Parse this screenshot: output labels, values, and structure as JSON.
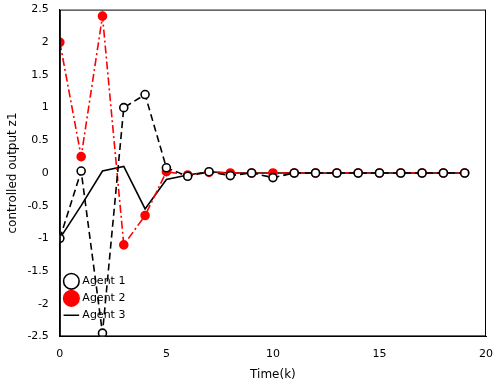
{
  "chart_data": {
    "type": "line",
    "x_label": "Time(k)",
    "y_label": "controlled output z1",
    "x": [
      0,
      1,
      2,
      3,
      4,
      5,
      6,
      7,
      8,
      9,
      10,
      11,
      12,
      13,
      14,
      15,
      16,
      17,
      18,
      19
    ],
    "series": [
      {
        "name": "Agent 1",
        "color": "#000000",
        "marker": "open_circle",
        "line_style": "dashed",
        "values": [
          -1.0,
          0.03,
          -2.45,
          1.0,
          1.2,
          0.08,
          -0.05,
          0.02,
          -0.04,
          0.0,
          -0.07,
          0.0,
          0.0,
          0.0,
          0.0,
          0.0,
          0.0,
          0.0,
          0.0,
          0.0
        ]
      },
      {
        "name": "Agent 2",
        "color": "#ff0000",
        "marker": "circle",
        "line_style": "dashdot",
        "values": [
          2.0,
          0.25,
          2.4,
          -1.1,
          -0.65,
          0.02,
          -0.03,
          0.01,
          0.0,
          0.0,
          0.0,
          0.0,
          0.0,
          0.0,
          0.0,
          0.0,
          0.0,
          0.0,
          0.0,
          0.0
        ]
      },
      {
        "name": "Agent 3",
        "color": "#000000",
        "marker": "none",
        "line_style": "solid",
        "values": [
          -1.0,
          -0.5,
          0.03,
          0.1,
          -0.55,
          -0.1,
          -0.03,
          0.02,
          0.0,
          0.0,
          0.0,
          0.0,
          0.0,
          0.0,
          0.0,
          0.0,
          0.0,
          0.0,
          0.0,
          0.0
        ]
      }
    ],
    "xlim": [
      0,
      20
    ],
    "xticks": [
      0,
      5,
      10,
      15,
      20
    ],
    "ylim": [
      -2.5,
      2.5
    ],
    "yticks": [
      -2.5,
      -2,
      -1.5,
      -1,
      -0.5,
      0,
      0.5,
      1,
      1.5,
      2,
      2.5
    ],
    "grid": false,
    "legend": "upper right"
  }
}
